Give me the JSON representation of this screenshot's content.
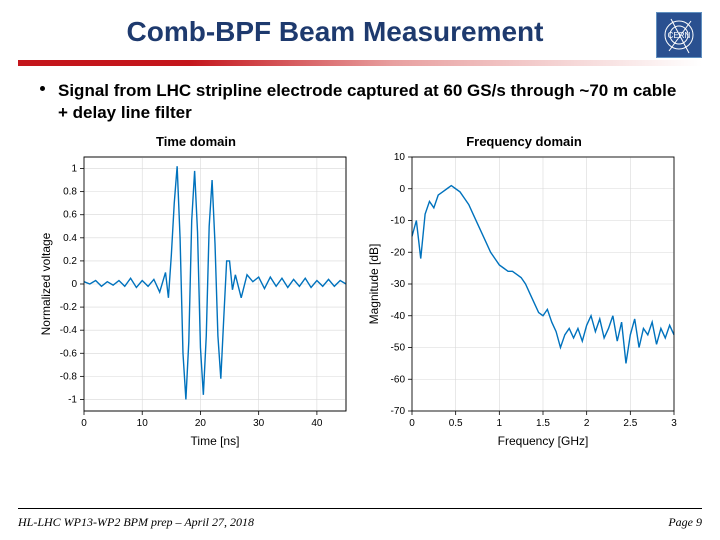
{
  "title": "Comb-BPF Beam Measurement",
  "logo_text": "CERN",
  "logo_bg": "#2a5090",
  "bullet": "Signal from LHC stripline electrode captured at 60 GS/s through ~70 m cable + delay line filter",
  "footer_left": "HL-LHC WP13-WP2 BPM prep – April 27, 2018",
  "footer_right": "Page  9",
  "time_plot": {
    "type": "line",
    "title": "Time domain",
    "xlabel": "Time [ns]",
    "ylabel": "Normalized voltage",
    "xlim": [
      0,
      45
    ],
    "ylim": [
      -1.1,
      1.1
    ],
    "xticks": [
      0,
      10,
      20,
      30,
      40
    ],
    "yticks": [
      -1,
      -0.8,
      -0.6,
      -0.4,
      -0.2,
      0,
      0.2,
      0.4,
      0.6,
      0.8,
      1
    ],
    "background_color": "#ffffff",
    "grid_color": "#d8d8d8",
    "line_color": "#0072bd",
    "line_width": 1.4,
    "label_fontsize": 12,
    "tick_fontsize": 10,
    "data": [
      [
        0,
        0.02
      ],
      [
        1,
        0
      ],
      [
        2,
        0.03
      ],
      [
        3,
        -0.02
      ],
      [
        4,
        0.02
      ],
      [
        5,
        -0.01
      ],
      [
        6,
        0.03
      ],
      [
        7,
        -0.02
      ],
      [
        8,
        0.05
      ],
      [
        9,
        -0.03
      ],
      [
        10,
        0.03
      ],
      [
        11,
        -0.02
      ],
      [
        12,
        0.04
      ],
      [
        13,
        -0.07
      ],
      [
        14,
        0.1
      ],
      [
        14.5,
        -0.12
      ],
      [
        15,
        0.25
      ],
      [
        15.5,
        0.7
      ],
      [
        16,
        1.02
      ],
      [
        16.5,
        0.4
      ],
      [
        17,
        -0.6
      ],
      [
        17.5,
        -1.0
      ],
      [
        18,
        -0.5
      ],
      [
        18.5,
        0.55
      ],
      [
        19,
        0.98
      ],
      [
        19.5,
        0.45
      ],
      [
        20,
        -0.55
      ],
      [
        20.5,
        -0.96
      ],
      [
        21,
        -0.45
      ],
      [
        21.5,
        0.5
      ],
      [
        22,
        0.9
      ],
      [
        22.5,
        0.35
      ],
      [
        23,
        -0.45
      ],
      [
        23.5,
        -0.82
      ],
      [
        24,
        -0.3
      ],
      [
        24.5,
        0.2
      ],
      [
        25,
        0.2
      ],
      [
        25.5,
        -0.05
      ],
      [
        26,
        0.08
      ],
      [
        27,
        -0.12
      ],
      [
        28,
        0.08
      ],
      [
        29,
        0.02
      ],
      [
        30,
        0.06
      ],
      [
        31,
        -0.04
      ],
      [
        32,
        0.06
      ],
      [
        33,
        -0.02
      ],
      [
        34,
        0.05
      ],
      [
        35,
        -0.03
      ],
      [
        36,
        0.04
      ],
      [
        37,
        -0.02
      ],
      [
        38,
        0.05
      ],
      [
        39,
        -0.03
      ],
      [
        40,
        0.03
      ],
      [
        41,
        -0.02
      ],
      [
        42,
        0.04
      ],
      [
        43,
        -0.02
      ],
      [
        44,
        0.03
      ],
      [
        45,
        0
      ]
    ]
  },
  "freq_plot": {
    "type": "line",
    "title": "Frequency domain",
    "xlabel": "Frequency [GHz]",
    "ylabel": "Magnitude [dB]",
    "xlim": [
      0,
      3
    ],
    "ylim": [
      -70,
      10
    ],
    "xticks": [
      0,
      0.5,
      1,
      1.5,
      2,
      2.5,
      3
    ],
    "yticks": [
      -70,
      -60,
      -50,
      -40,
      -30,
      -20,
      -10,
      0,
      10
    ],
    "background_color": "#ffffff",
    "grid_color": "#d8d8d8",
    "line_color": "#0072bd",
    "line_width": 1.4,
    "label_fontsize": 12,
    "tick_fontsize": 10,
    "data": [
      [
        0,
        -15
      ],
      [
        0.05,
        -10
      ],
      [
        0.1,
        -22
      ],
      [
        0.15,
        -8
      ],
      [
        0.2,
        -4
      ],
      [
        0.25,
        -6
      ],
      [
        0.3,
        -2
      ],
      [
        0.35,
        -1
      ],
      [
        0.4,
        0
      ],
      [
        0.45,
        1
      ],
      [
        0.5,
        0
      ],
      [
        0.55,
        -1
      ],
      [
        0.6,
        -3
      ],
      [
        0.65,
        -5
      ],
      [
        0.7,
        -8
      ],
      [
        0.75,
        -11
      ],
      [
        0.8,
        -14
      ],
      [
        0.85,
        -17
      ],
      [
        0.9,
        -20
      ],
      [
        0.95,
        -22
      ],
      [
        1.0,
        -24
      ],
      [
        1.05,
        -25
      ],
      [
        1.1,
        -26
      ],
      [
        1.15,
        -26
      ],
      [
        1.2,
        -27
      ],
      [
        1.25,
        -28
      ],
      [
        1.3,
        -30
      ],
      [
        1.35,
        -33
      ],
      [
        1.4,
        -36
      ],
      [
        1.45,
        -39
      ],
      [
        1.5,
        -40
      ],
      [
        1.55,
        -38
      ],
      [
        1.6,
        -42
      ],
      [
        1.65,
        -45
      ],
      [
        1.7,
        -50
      ],
      [
        1.75,
        -46
      ],
      [
        1.8,
        -44
      ],
      [
        1.85,
        -47
      ],
      [
        1.9,
        -44
      ],
      [
        1.95,
        -48
      ],
      [
        2.0,
        -43
      ],
      [
        2.05,
        -40
      ],
      [
        2.1,
        -45
      ],
      [
        2.15,
        -41
      ],
      [
        2.2,
        -47
      ],
      [
        2.25,
        -44
      ],
      [
        2.3,
        -40
      ],
      [
        2.35,
        -48
      ],
      [
        2.4,
        -42
      ],
      [
        2.45,
        -55
      ],
      [
        2.5,
        -46
      ],
      [
        2.55,
        -41
      ],
      [
        2.6,
        -50
      ],
      [
        2.65,
        -44
      ],
      [
        2.7,
        -46
      ],
      [
        2.75,
        -42
      ],
      [
        2.8,
        -49
      ],
      [
        2.85,
        -44
      ],
      [
        2.9,
        -47
      ],
      [
        2.95,
        -43
      ],
      [
        3.0,
        -46
      ]
    ]
  }
}
